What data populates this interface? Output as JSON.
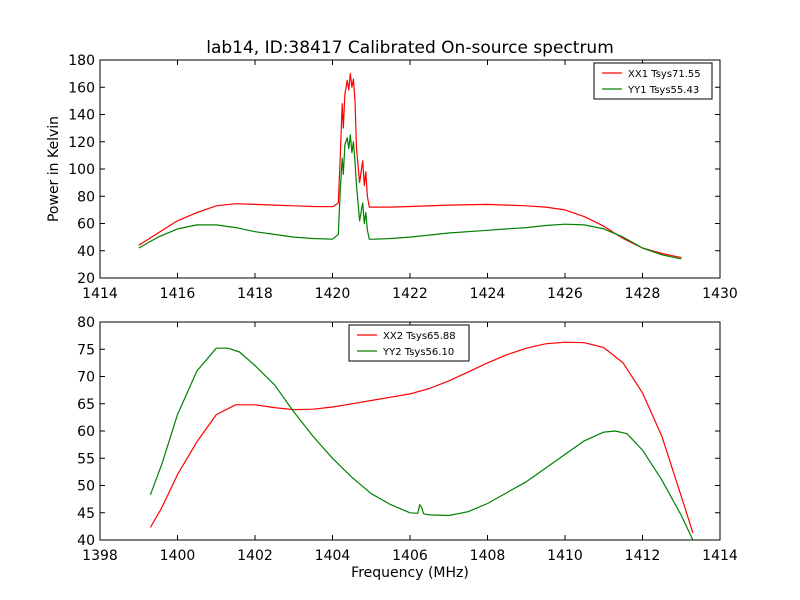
{
  "figure": {
    "title": "lab14, ID:38417 Calibrated On-source spectrum",
    "xlabel": "Frequency (MHz)"
  },
  "chart_data": [
    {
      "type": "line",
      "title": "lab14, ID:38417 Calibrated On-source spectrum",
      "xlabel": "",
      "ylabel": "Power in Kelvin",
      "xlim": [
        1414,
        1430
      ],
      "ylim": [
        20,
        180
      ],
      "xticks": [
        "1414",
        "1416",
        "1418",
        "1420",
        "1422",
        "1424",
        "1426",
        "1428",
        "1430"
      ],
      "yticks": [
        "20",
        "40",
        "60",
        "80",
        "100",
        "120",
        "140",
        "160",
        "180"
      ],
      "grid": false,
      "legend_position": "top-right",
      "series": [
        {
          "name": "XX1 Tsys71.55",
          "color": "#ff0000",
          "x": [
            1415,
            1415.5,
            1416,
            1416.5,
            1417,
            1417.5,
            1418,
            1418.5,
            1419,
            1419.5,
            1420,
            1420.15,
            1420.2,
            1420.25,
            1420.28,
            1420.32,
            1420.38,
            1420.42,
            1420.46,
            1420.5,
            1420.54,
            1420.58,
            1420.62,
            1420.7,
            1420.78,
            1420.82,
            1420.86,
            1420.9,
            1420.95,
            1421.1,
            1421.5,
            1422,
            1423,
            1424,
            1424.5,
            1425,
            1425.5,
            1426,
            1426.5,
            1427,
            1427.5,
            1428,
            1428.5,
            1429
          ],
          "y": [
            44,
            53,
            62,
            68,
            73,
            74.5,
            74,
            73.5,
            73,
            72.5,
            72.3,
            75,
            110,
            148,
            130,
            155,
            165,
            158,
            170,
            160,
            166,
            150,
            115,
            90,
            106,
            88,
            98,
            80,
            72,
            72,
            72,
            72.5,
            73.5,
            74,
            73.5,
            73,
            72,
            70,
            65,
            58,
            49,
            42,
            38,
            35
          ]
        },
        {
          "name": "YY1 Tsys55.43",
          "color": "#008000",
          "x": [
            1415,
            1415.5,
            1416,
            1416.5,
            1417,
            1417.5,
            1418,
            1418.5,
            1419,
            1419.5,
            1420,
            1420.15,
            1420.2,
            1420.25,
            1420.28,
            1420.32,
            1420.38,
            1420.42,
            1420.46,
            1420.5,
            1420.54,
            1420.58,
            1420.62,
            1420.7,
            1420.78,
            1420.82,
            1420.86,
            1420.9,
            1420.95,
            1421.1,
            1421.5,
            1422,
            1423,
            1424,
            1424.5,
            1425,
            1425.5,
            1426,
            1426.5,
            1427,
            1427.5,
            1428,
            1428.5,
            1429
          ],
          "y": [
            42,
            50,
            56,
            59,
            59,
            57,
            54,
            52,
            50,
            49,
            48.5,
            52,
            85,
            108,
            96,
            118,
            123,
            115,
            125,
            112,
            120,
            105,
            88,
            62,
            75,
            60,
            68,
            55,
            48.5,
            48.5,
            49,
            50,
            53,
            55,
            56,
            57,
            58.5,
            59.5,
            59,
            56,
            50,
            42,
            37,
            34
          ]
        }
      ]
    },
    {
      "type": "line",
      "title": "",
      "xlabel": "Frequency (MHz)",
      "ylabel": "",
      "xlim": [
        1398,
        1414
      ],
      "ylim": [
        40,
        80
      ],
      "xticks": [
        "1398",
        "1400",
        "1402",
        "1404",
        "1406",
        "1408",
        "1410",
        "1412",
        "1414"
      ],
      "yticks": [
        "40",
        "45",
        "50",
        "55",
        "60",
        "65",
        "70",
        "75",
        "80"
      ],
      "grid": false,
      "legend_position": "top-center",
      "series": [
        {
          "name": "XX2 Tsys65.88",
          "color": "#ff0000",
          "x": [
            1399.3,
            1399.6,
            1400,
            1400.5,
            1401,
            1401.5,
            1402,
            1402.5,
            1403,
            1403.5,
            1404,
            1404.5,
            1405,
            1405.5,
            1406,
            1406.5,
            1407,
            1407.5,
            1408,
            1408.5,
            1409,
            1409.5,
            1410,
            1410.5,
            1411,
            1411.5,
            1412,
            1412.5,
            1413,
            1413.3
          ],
          "y": [
            42.3,
            46,
            52,
            58,
            63,
            64.8,
            64.8,
            64.3,
            63.9,
            64,
            64.4,
            65,
            65.6,
            66.2,
            66.8,
            67.8,
            69.2,
            70.8,
            72.5,
            74,
            75.2,
            76,
            76.3,
            76.2,
            75.3,
            72.5,
            67,
            59,
            48,
            41.3
          ]
        },
        {
          "name": "YY2 Tsys56.10",
          "color": "#008000",
          "x": [
            1399.3,
            1399.6,
            1400,
            1400.5,
            1401,
            1401.3,
            1401.6,
            1402,
            1402.5,
            1403,
            1403.5,
            1404,
            1404.5,
            1405,
            1405.5,
            1406,
            1406.2,
            1406.25,
            1406.3,
            1406.35,
            1406.5,
            1407,
            1407.5,
            1408,
            1408.5,
            1409,
            1409.5,
            1410,
            1410.5,
            1411,
            1411.3,
            1411.6,
            1412,
            1412.5,
            1413,
            1413.3
          ],
          "y": [
            48.3,
            54,
            63,
            71,
            75.2,
            75.2,
            74.5,
            72,
            68.5,
            63.5,
            59,
            55,
            51.5,
            48.5,
            46.5,
            45,
            44.9,
            46.5,
            46,
            44.8,
            44.6,
            44.5,
            45.2,
            46.7,
            48.7,
            50.7,
            53.2,
            55.7,
            58.2,
            59.8,
            60,
            59.5,
            56.5,
            51,
            44.5,
            40
          ]
        }
      ]
    }
  ]
}
